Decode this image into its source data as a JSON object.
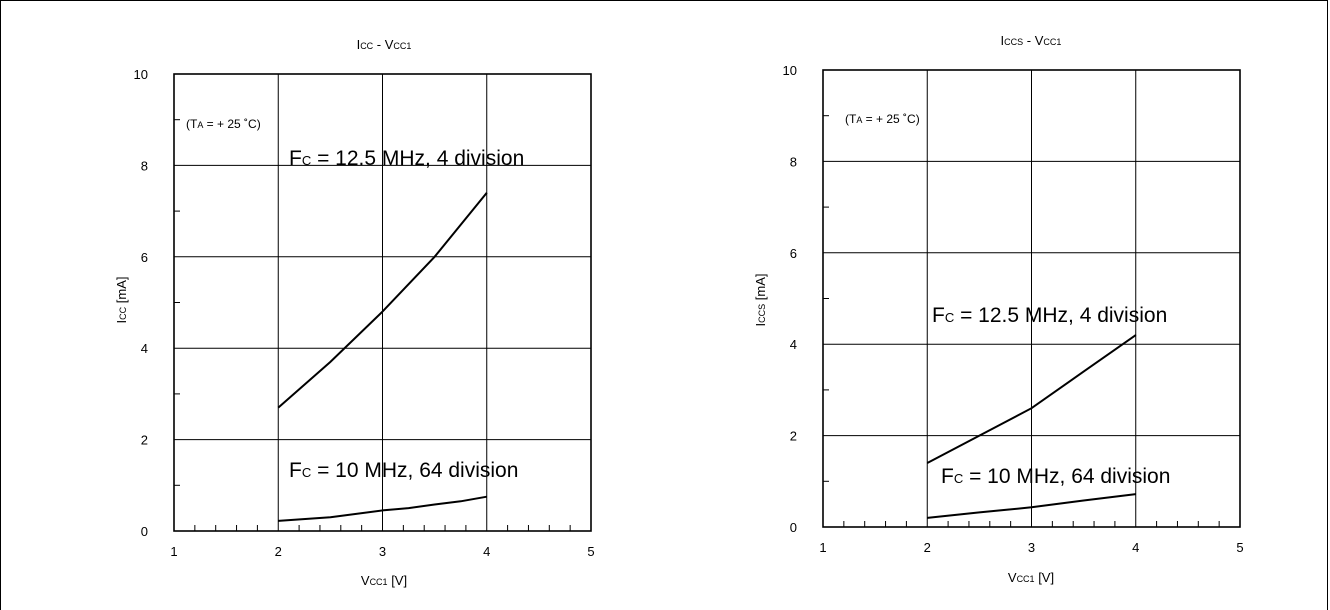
{
  "charts": [
    {
      "title": "Icc - Vcc1",
      "ylabel": "Icc [mA]",
      "xlabel": "Vcc1 [V]",
      "condition": "(TA = + 25 ˚C)",
      "curve_labels": [
        "Fc = 12.5 MHz, 4 division",
        "Fc = 10 MHz, 64 division"
      ]
    },
    {
      "title": "Iccs - Vcc1",
      "ylabel": "Iccs [mA]",
      "xlabel": "Vcc1 [V]",
      "condition": "(TA = + 25 ˚C)",
      "curve_labels": [
        "Fc = 12.5 MHz, 4 division",
        "Fc = 10 MHz, 64 division"
      ]
    }
  ],
  "chart_data": [
    {
      "type": "line",
      "title": "Icc - Vcc1",
      "xlabel": "Vcc1 [V]",
      "ylabel": "Icc [mA]",
      "xlim": [
        1,
        5
      ],
      "ylim": [
        0,
        10
      ],
      "x_ticks": [
        1,
        2,
        3,
        4,
        5
      ],
      "y_ticks": [
        0,
        2,
        4,
        6,
        8,
        10
      ],
      "grid": true,
      "series": [
        {
          "name": "Fc = 12.5 MHz, 4 division",
          "x": [
            2.0,
            2.5,
            3.0,
            3.5,
            4.0
          ],
          "y": [
            2.7,
            3.7,
            4.8,
            6.0,
            7.4
          ]
        },
        {
          "name": "Fc = 10 MHz, 64 division",
          "x": [
            2.0,
            2.5,
            3.0,
            3.25,
            3.5,
            3.75,
            4.0
          ],
          "y": [
            0.22,
            0.3,
            0.45,
            0.5,
            0.58,
            0.65,
            0.75
          ]
        }
      ]
    },
    {
      "type": "line",
      "title": "Iccs - Vcc1",
      "xlabel": "Vcc1 [V]",
      "ylabel": "Iccs [mA]",
      "xlim": [
        1,
        5
      ],
      "ylim": [
        0,
        10
      ],
      "x_ticks": [
        1,
        2,
        3,
        4,
        5
      ],
      "y_ticks": [
        0,
        2,
        4,
        6,
        8,
        10
      ],
      "grid": true,
      "series": [
        {
          "name": "Fc = 12.5 MHz, 4 division",
          "x": [
            2.0,
            2.5,
            3.0,
            3.5,
            4.0
          ],
          "y": [
            1.4,
            2.0,
            2.6,
            3.4,
            4.2
          ]
        },
        {
          "name": "Fc = 10 MHz, 64 division",
          "x": [
            2.0,
            2.5,
            3.0,
            3.5,
            4.0
          ],
          "y": [
            0.2,
            0.32,
            0.43,
            0.58,
            0.72
          ]
        }
      ]
    }
  ]
}
